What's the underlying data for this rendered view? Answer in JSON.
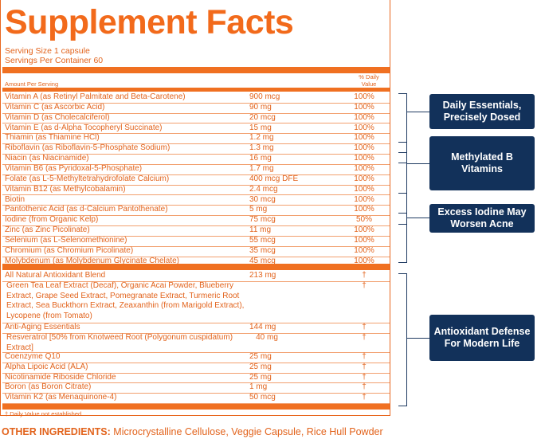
{
  "title": "Supplement Facts",
  "serving_size": "Serving Size 1 capsule",
  "servings_per_container": "Servings Per Container 60",
  "header_amount": "Amount Per Serving",
  "header_dv_line1": "% Daily",
  "header_dv_line2": "Value",
  "vitamins": [
    {
      "name": "Vitamin A (as Retinyl Palmitate and Beta-Carotene)",
      "amount": "900 mcg",
      "dv": "100%"
    },
    {
      "name": "Vitamin C (as Ascorbic Acid)",
      "amount": "90 mg",
      "dv": "100%"
    },
    {
      "name": "Vitamin D (as Cholecalciferol)",
      "amount": "20 mcg",
      "dv": "100%"
    },
    {
      "name": "Vitamin E (as d-Alpha Tocopheryl Succinate)",
      "amount": "15 mg",
      "dv": "100%"
    },
    {
      "name": "Thiamin (as Thiamine HCl)",
      "amount": "1.2 mg",
      "dv": "100%"
    },
    {
      "name": "Riboflavin (as Riboflavin-5-Phosphate Sodium)",
      "amount": "1.3 mg",
      "dv": "100%"
    },
    {
      "name": "Niacin (as Niacinamide)",
      "amount": "16 mg",
      "dv": "100%"
    },
    {
      "name": "Vitamin B6 (as Pyridoxal-5-Phosphate)",
      "amount": "1.7 mg",
      "dv": "100%"
    },
    {
      "name": "Folate (as L-5-Methyltetrahydrofolate Calcium)",
      "amount": "400 mcg DFE",
      "dv": "100%"
    },
    {
      "name": "Vitamin B12 (as Methylcobalamin)",
      "amount": "2.4 mcg",
      "dv": "100%"
    },
    {
      "name": "Biotin",
      "amount": "30 mcg",
      "dv": "100%"
    },
    {
      "name": "Pantothenic Acid (as d-Calcium Pantothenate)",
      "amount": "5 mg",
      "dv": "100%"
    },
    {
      "name": "Iodine (from Organic Kelp)",
      "amount": "75 mcg",
      "dv": "50%"
    },
    {
      "name": "Zinc (as Zinc Picolinate)",
      "amount": "11 mg",
      "dv": "100%"
    },
    {
      "name": "Selenium (as L-Selenomethionine)",
      "amount": "55 mcg",
      "dv": "100%"
    },
    {
      "name": "Chromium (as Chromium Picolinate)",
      "amount": "35 mcg",
      "dv": "100%"
    },
    {
      "name": "Molybdenum (as Molybdenum Glycinate Chelate)",
      "amount": "45 mcg",
      "dv": "100%"
    }
  ],
  "blend_name": "All Natural Antioxidant Blend",
  "blend_amount": "213 mg",
  "blend_dv": "†",
  "blend_contents": "Green Tea Leaf Extract (Decaf), Organic Acai Powder, Blueberry Extract, Grape Seed Extract, Pomegranate Extract, Turmeric Root Extract, Sea Buckthorn Extract, Zeaxanthin (from Marigold Extract), Lycopene (from Tomato)",
  "blend_contents_dv": "†",
  "anti_aging_name": "Anti-Aging Essentials",
  "anti_aging_amount": "144 mg",
  "anti_aging_dv": "†",
  "resveratrol_name": "Resveratrol [50% from Knotweed Root (Polygonum cuspidatum) Extract]",
  "resveratrol_amount": "40 mg",
  "resveratrol_dv": "†",
  "others": [
    {
      "name": "Coenzyme Q10",
      "amount": "25 mg",
      "dv": "†"
    },
    {
      "name": "Alpha Lipoic Acid (ALA)",
      "amount": "25 mg",
      "dv": "†"
    },
    {
      "name": "Nicotinamide Riboside Chloride",
      "amount": "25 mg",
      "dv": "†"
    },
    {
      "name": "Boron (as Boron Citrate)",
      "amount": "1 mg",
      "dv": "†"
    },
    {
      "name": "Vitamin K2 (as Menaquinone-4)",
      "amount": "50 mcg",
      "dv": "†"
    }
  ],
  "footnote": "† Daily Value not established.",
  "other_label": "OTHER INGREDIENTS:",
  "other_value": "Microcrystalline Cellulose, Veggie Capsule, Rice Hull Powder",
  "callouts": [
    {
      "text": "Daily Essentials, Precisely Dosed"
    },
    {
      "text": "Methylated B Vitamins"
    },
    {
      "text": "Excess Iodine May Worsen Acne"
    },
    {
      "text": "Antioxidant Defense For Modern Life"
    }
  ],
  "colors": {
    "label_orange": "#f07021",
    "callout_navy": "#12315a"
  }
}
